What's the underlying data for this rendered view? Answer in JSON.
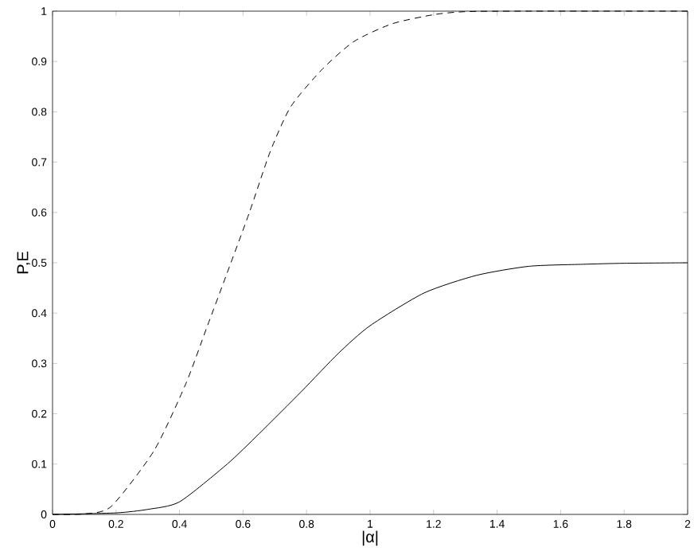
{
  "chart_data": {
    "type": "line",
    "xlabel": "|α|",
    "ylabel": "P,E",
    "series": [
      {
        "color": "#000000",
        "line_style": "dashed",
        "x": [
          0,
          0.1,
          0.185,
          0.32,
          0.42,
          0.485,
          0.55,
          0.62,
          0.685,
          0.75,
          0.85,
          0.95,
          1.07,
          1.2,
          1.3,
          1.5,
          2
        ],
        "values": [
          0,
          0.001,
          0.016,
          0.127,
          0.26,
          0.37,
          0.48,
          0.6,
          0.72,
          0.81,
          0.885,
          0.94,
          0.975,
          0.993,
          0.999,
          1,
          1
        ]
      },
      {
        "color": "#000000",
        "line_style": "solid",
        "x": [
          0,
          0.2,
          0.3,
          0.4,
          0.55,
          0.65,
          0.785,
          0.9,
          1.0,
          1.17,
          1.335,
          1.5,
          1.67,
          1.8,
          2
        ],
        "values": [
          0,
          0.003,
          0.01,
          0.025,
          0.1,
          0.16,
          0.245,
          0.32,
          0.375,
          0.44,
          0.475,
          0.493,
          0.497,
          0.499,
          0.5
        ]
      }
    ],
    "xlim": [
      0,
      2
    ],
    "xticks": [
      0,
      0.2,
      0.4,
      0.6,
      0.8,
      1,
      1.2,
      1.4,
      1.6,
      1.8,
      2
    ],
    "ylim": [
      0,
      1
    ],
    "yticks": [
      0,
      0.1,
      0.2,
      0.3,
      0.4,
      0.5,
      0.6,
      0.7,
      0.8,
      0.9,
      1
    ],
    "grid": false,
    "marker": "none"
  }
}
